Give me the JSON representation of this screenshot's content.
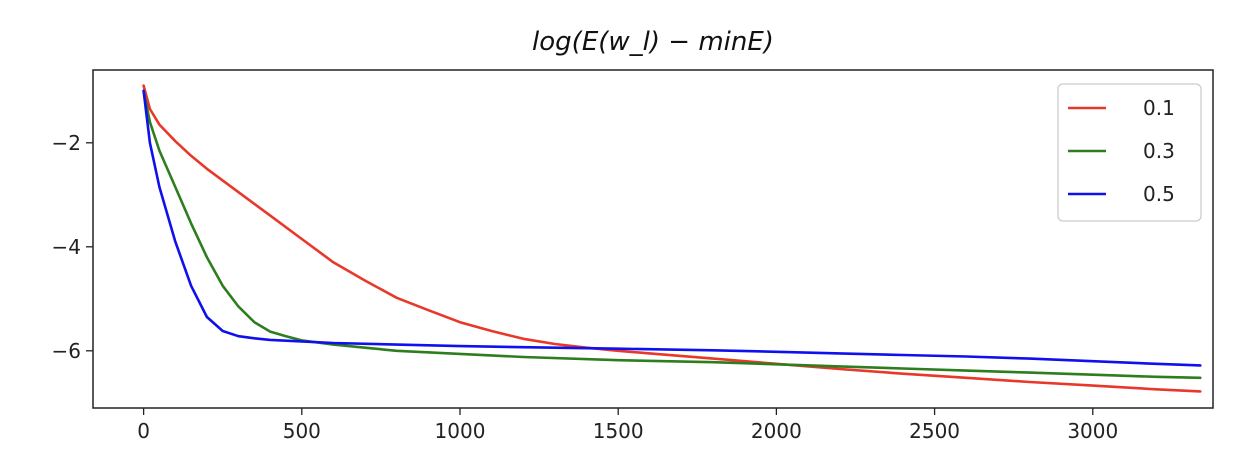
{
  "chart_data": {
    "type": "line",
    "title": "log(E(w_l) − minE)",
    "xlabel": "",
    "ylabel": "",
    "xlim": [
      -160,
      3380
    ],
    "ylim": [
      -7.1,
      -0.6
    ],
    "xticks": [
      0,
      500,
      1000,
      1500,
      2000,
      2500,
      3000
    ],
    "xtick_labels": [
      "0",
      "500",
      "1000",
      "1500",
      "2000",
      "2500",
      "3000"
    ],
    "yticks": [
      -2,
      -4,
      -6
    ],
    "ytick_labels": [
      "−2",
      "−4",
      "−6"
    ],
    "grid": false,
    "legend_position": "top-right",
    "series": [
      {
        "name": "0.1",
        "color": "#e8382a",
        "x": [
          0,
          20,
          50,
          100,
          150,
          200,
          300,
          400,
          500,
          600,
          700,
          800,
          900,
          1000,
          1100,
          1200,
          1300,
          1400,
          1500,
          1600,
          1800,
          2000,
          2200,
          2400,
          2600,
          2800,
          3000,
          3200,
          3340
        ],
        "y": [
          -0.9,
          -1.35,
          -1.65,
          -1.97,
          -2.25,
          -2.5,
          -2.95,
          -3.4,
          -3.85,
          -4.3,
          -4.65,
          -4.98,
          -5.22,
          -5.45,
          -5.62,
          -5.77,
          -5.87,
          -5.94,
          -6.0,
          -6.05,
          -6.15,
          -6.25,
          -6.35,
          -6.44,
          -6.52,
          -6.6,
          -6.67,
          -6.74,
          -6.78
        ]
      },
      {
        "name": "0.3",
        "color": "#2e7d1e",
        "x": [
          0,
          20,
          50,
          100,
          150,
          200,
          250,
          300,
          350,
          400,
          450,
          500,
          600,
          700,
          800,
          1000,
          1200,
          1500,
          1800,
          2000,
          2200,
          2400,
          2600,
          2800,
          3000,
          3200,
          3340
        ],
        "y": [
          -1.0,
          -1.6,
          -2.15,
          -2.85,
          -3.55,
          -4.2,
          -4.75,
          -5.15,
          -5.45,
          -5.63,
          -5.72,
          -5.8,
          -5.88,
          -5.94,
          -6.0,
          -6.06,
          -6.12,
          -6.18,
          -6.22,
          -6.26,
          -6.3,
          -6.34,
          -6.38,
          -6.42,
          -6.46,
          -6.5,
          -6.52
        ]
      },
      {
        "name": "0.5",
        "color": "#1010ee",
        "x": [
          0,
          20,
          50,
          100,
          150,
          200,
          250,
          300,
          350,
          400,
          500,
          600,
          800,
          1000,
          1200,
          1500,
          1800,
          2000,
          2200,
          2400,
          2600,
          2800,
          3000,
          3200,
          3340
        ],
        "y": [
          -1.0,
          -2.0,
          -2.85,
          -3.9,
          -4.75,
          -5.35,
          -5.62,
          -5.72,
          -5.76,
          -5.79,
          -5.82,
          -5.85,
          -5.88,
          -5.91,
          -5.93,
          -5.96,
          -5.99,
          -6.02,
          -6.05,
          -6.08,
          -6.11,
          -6.15,
          -6.2,
          -6.25,
          -6.28
        ]
      }
    ]
  }
}
